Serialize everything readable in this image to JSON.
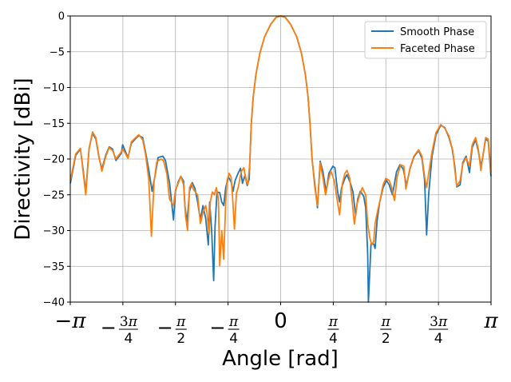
{
  "chart_data": {
    "type": "line",
    "title": "",
    "xlabel": "Angle [rad]",
    "ylabel": "Directivity [dBi]",
    "xlim": [
      -3.14159,
      3.14159
    ],
    "ylim": [
      -40,
      0
    ],
    "grid": true,
    "legend_position": "top-right",
    "x_ticks": [
      {
        "value": -3.14159,
        "label": "−π",
        "parts": [
          "−",
          "",
          "π",
          ""
        ]
      },
      {
        "value": -2.35619,
        "label": "−3π/4",
        "parts": [
          "−",
          "3",
          "π",
          "4"
        ]
      },
      {
        "value": -1.5708,
        "label": "−π/2",
        "parts": [
          "−",
          "",
          "π",
          "2"
        ]
      },
      {
        "value": -0.7854,
        "label": "−π/4",
        "parts": [
          "−",
          "",
          "π",
          "4"
        ]
      },
      {
        "value": 0,
        "label": "0",
        "parts": [
          "",
          "0",
          "",
          ""
        ]
      },
      {
        "value": 0.7854,
        "label": "π/4",
        "parts": [
          "",
          "",
          "π",
          "4"
        ]
      },
      {
        "value": 1.5708,
        "label": "π/2",
        "parts": [
          "",
          "",
          "π",
          "2"
        ]
      },
      {
        "value": 2.35619,
        "label": "3π/4",
        "parts": [
          "",
          "3",
          "π",
          "4"
        ]
      },
      {
        "value": 3.14159,
        "label": "π",
        "parts": [
          "",
          "",
          "π",
          ""
        ]
      }
    ],
    "y_ticks": [
      0,
      -5,
      -10,
      -15,
      -20,
      -25,
      -30,
      -35,
      -40
    ],
    "y_tick_labels": [
      "0",
      "−5",
      "−10",
      "−15",
      "−20",
      "−25",
      "−30",
      "−35",
      "−40"
    ],
    "series": [
      {
        "name": "Smooth Phase",
        "color": "#1f77b4",
        "points": [
          [
            -3.14,
            -23.4
          ],
          [
            -3.06,
            -19.5
          ],
          [
            -2.99,
            -18.6
          ],
          [
            -2.95,
            -21.5
          ],
          [
            -2.91,
            -24.6
          ],
          [
            -2.86,
            -18.5
          ],
          [
            -2.81,
            -16.4
          ],
          [
            -2.76,
            -17.2
          ],
          [
            -2.71,
            -19.9
          ],
          [
            -2.67,
            -21.4
          ],
          [
            -2.61,
            -19.4
          ],
          [
            -2.56,
            -18.3
          ],
          [
            -2.51,
            -18.6
          ],
          [
            -2.46,
            -20.2
          ],
          [
            -2.38,
            -19.2
          ],
          [
            -2.36,
            -18.0
          ],
          [
            -2.32,
            -18.9
          ],
          [
            -2.28,
            -19.8
          ],
          [
            -2.23,
            -17.8
          ],
          [
            -2.12,
            -16.7
          ],
          [
            -2.06,
            -17.0
          ],
          [
            -2.02,
            -18.9
          ],
          [
            -1.97,
            -21.5
          ],
          [
            -1.92,
            -24.5
          ],
          [
            -1.87,
            -22.0
          ],
          [
            -1.83,
            -19.8
          ],
          [
            -1.76,
            -19.6
          ],
          [
            -1.72,
            -20.2
          ],
          [
            -1.66,
            -23.3
          ],
          [
            -1.63,
            -25.9
          ],
          [
            -1.6,
            -28.5
          ],
          [
            -1.57,
            -24.5
          ],
          [
            -1.53,
            -23.2
          ],
          [
            -1.49,
            -22.4
          ],
          [
            -1.45,
            -23.1
          ],
          [
            -1.43,
            -26.5
          ],
          [
            -1.4,
            -29.0
          ],
          [
            -1.36,
            -24.5
          ],
          [
            -1.32,
            -23.3
          ],
          [
            -1.28,
            -24.1
          ],
          [
            -1.24,
            -26.0
          ],
          [
            -1.2,
            -28.5
          ],
          [
            -1.16,
            -26.5
          ],
          [
            -1.12,
            -28.3
          ],
          [
            -1.08,
            -32.0
          ],
          [
            -1.06,
            -26.0
          ],
          [
            -1.03,
            -30.0
          ],
          [
            -1.0,
            -37.0
          ],
          [
            -0.98,
            -29.5
          ],
          [
            -0.95,
            -24.6
          ],
          [
            -0.91,
            -24.7
          ],
          [
            -0.88,
            -26.0
          ],
          [
            -0.85,
            -26.5
          ],
          [
            -0.82,
            -24.0
          ],
          [
            -0.78,
            -22.5
          ],
          [
            -0.74,
            -23.2
          ],
          [
            -0.71,
            -24.5
          ],
          [
            -0.68,
            -23.0
          ],
          [
            -0.64,
            -22.1
          ],
          [
            -0.6,
            -21.3
          ],
          [
            -0.57,
            -23.4
          ],
          [
            -0.53,
            -22.2
          ],
          [
            -0.5,
            -23.7
          ],
          [
            -0.47,
            -22.8
          ],
          [
            -0.44,
            -15.3
          ],
          [
            -0.41,
            -11.4
          ],
          [
            -0.37,
            -8.2
          ],
          [
            -0.31,
            -5.2
          ],
          [
            -0.24,
            -2.9
          ],
          [
            -0.15,
            -1.2
          ],
          [
            -0.07,
            -0.2
          ],
          [
            0.0,
            0.0
          ],
          [
            0.07,
            -0.2
          ],
          [
            0.15,
            -1.2
          ],
          [
            0.24,
            -2.9
          ],
          [
            0.31,
            -5.2
          ],
          [
            0.37,
            -8.2
          ],
          [
            0.41,
            -11.4
          ],
          [
            0.44,
            -15.3
          ],
          [
            0.47,
            -20.1
          ],
          [
            0.51,
            -23.5
          ],
          [
            0.55,
            -26.8
          ],
          [
            0.59,
            -20.3
          ],
          [
            0.63,
            -21.7
          ],
          [
            0.68,
            -24.6
          ],
          [
            0.72,
            -22.0
          ],
          [
            0.78,
            -21.0
          ],
          [
            0.81,
            -21.2
          ],
          [
            0.85,
            -24.5
          ],
          [
            0.88,
            -26.0
          ],
          [
            0.91,
            -24.0
          ],
          [
            0.96,
            -22.7
          ],
          [
            0.99,
            -22.2
          ],
          [
            1.04,
            -23.3
          ],
          [
            1.08,
            -24.6
          ],
          [
            1.12,
            -27.9
          ],
          [
            1.15,
            -25.6
          ],
          [
            1.19,
            -24.5
          ],
          [
            1.24,
            -25.2
          ],
          [
            1.27,
            -26.8
          ],
          [
            1.3,
            -33.2
          ],
          [
            1.31,
            -40.0
          ],
          [
            1.35,
            -31.8
          ],
          [
            1.39,
            -31.9
          ],
          [
            1.41,
            -32.5
          ],
          [
            1.44,
            -28.6
          ],
          [
            1.48,
            -26.0
          ],
          [
            1.53,
            -24.0
          ],
          [
            1.58,
            -23.0
          ],
          [
            1.62,
            -23.6
          ],
          [
            1.67,
            -25.0
          ],
          [
            1.73,
            -21.8
          ],
          [
            1.78,
            -20.8
          ],
          [
            1.83,
            -21.4
          ],
          [
            1.88,
            -23.7
          ],
          [
            1.93,
            -21.4
          ],
          [
            1.99,
            -19.7
          ],
          [
            2.06,
            -18.8
          ],
          [
            2.11,
            -19.9
          ],
          [
            2.15,
            -23.0
          ],
          [
            2.18,
            -30.6
          ],
          [
            2.21,
            -24.9
          ],
          [
            2.26,
            -19.6
          ],
          [
            2.32,
            -16.6
          ],
          [
            2.39,
            -15.3
          ],
          [
            2.45,
            -15.6
          ],
          [
            2.51,
            -16.9
          ],
          [
            2.56,
            -18.5
          ],
          [
            2.6,
            -21.0
          ],
          [
            2.63,
            -23.9
          ],
          [
            2.68,
            -23.6
          ],
          [
            2.72,
            -20.5
          ],
          [
            2.77,
            -19.6
          ],
          [
            2.82,
            -21.9
          ],
          [
            2.86,
            -18.4
          ],
          [
            2.91,
            -17.3
          ],
          [
            2.95,
            -18.8
          ],
          [
            2.99,
            -21.0
          ],
          [
            3.02,
            -19.6
          ],
          [
            3.06,
            -17.2
          ],
          [
            3.1,
            -17.5
          ],
          [
            3.14,
            -22.4
          ]
        ]
      },
      {
        "name": "Faceted Phase",
        "color": "#ff7f0e",
        "points": [
          [
            -3.14,
            -23.0
          ],
          [
            -3.06,
            -19.3
          ],
          [
            -2.99,
            -18.5
          ],
          [
            -2.95,
            -21.8
          ],
          [
            -2.91,
            -25.0
          ],
          [
            -2.86,
            -18.6
          ],
          [
            -2.81,
            -16.2
          ],
          [
            -2.76,
            -17.0
          ],
          [
            -2.71,
            -19.8
          ],
          [
            -2.67,
            -21.7
          ],
          [
            -2.61,
            -19.6
          ],
          [
            -2.56,
            -18.4
          ],
          [
            -2.51,
            -18.8
          ],
          [
            -2.46,
            -20.0
          ],
          [
            -2.38,
            -19.0
          ],
          [
            -2.36,
            -18.6
          ],
          [
            -2.32,
            -19.2
          ],
          [
            -2.28,
            -19.9
          ],
          [
            -2.23,
            -17.6
          ],
          [
            -2.12,
            -16.6
          ],
          [
            -2.06,
            -17.3
          ],
          [
            -2.02,
            -19.2
          ],
          [
            -1.97,
            -22.8
          ],
          [
            -1.93,
            -30.8
          ],
          [
            -1.89,
            -23.2
          ],
          [
            -1.85,
            -20.4
          ],
          [
            -1.79,
            -20.0
          ],
          [
            -1.75,
            -20.2
          ],
          [
            -1.7,
            -22.0
          ],
          [
            -1.66,
            -25.6
          ],
          [
            -1.6,
            -26.5
          ],
          [
            -1.57,
            -24.3
          ],
          [
            -1.53,
            -23.4
          ],
          [
            -1.49,
            -22.4
          ],
          [
            -1.45,
            -23.6
          ],
          [
            -1.42,
            -28.0
          ],
          [
            -1.39,
            -30.0
          ],
          [
            -1.36,
            -24.0
          ],
          [
            -1.33,
            -23.4
          ],
          [
            -1.3,
            -24.3
          ],
          [
            -1.24,
            -25.0
          ],
          [
            -1.2,
            -29.0
          ],
          [
            -1.16,
            -27.5
          ],
          [
            -1.12,
            -26.5
          ],
          [
            -1.1,
            -27.5
          ],
          [
            -1.07,
            -30.5
          ],
          [
            -1.05,
            -26.0
          ],
          [
            -1.02,
            -24.6
          ],
          [
            -0.99,
            -25.0
          ],
          [
            -0.96,
            -24.0
          ],
          [
            -0.93,
            -25.5
          ],
          [
            -0.91,
            -34.9
          ],
          [
            -0.88,
            -30.0
          ],
          [
            -0.85,
            -34.0
          ],
          [
            -0.82,
            -26.0
          ],
          [
            -0.8,
            -23.0
          ],
          [
            -0.77,
            -22.0
          ],
          [
            -0.74,
            -22.5
          ],
          [
            -0.72,
            -25.0
          ],
          [
            -0.69,
            -29.8
          ],
          [
            -0.66,
            -24.8
          ],
          [
            -0.63,
            -23.8
          ],
          [
            -0.59,
            -21.8
          ],
          [
            -0.55,
            -21.2
          ],
          [
            -0.52,
            -23.0
          ],
          [
            -0.49,
            -23.5
          ],
          [
            -0.46,
            -20.5
          ],
          [
            -0.44,
            -15.3
          ],
          [
            -0.41,
            -11.4
          ],
          [
            -0.37,
            -8.2
          ],
          [
            -0.31,
            -5.2
          ],
          [
            -0.24,
            -2.9
          ],
          [
            -0.15,
            -1.2
          ],
          [
            -0.07,
            -0.2
          ],
          [
            0.0,
            0.0
          ],
          [
            0.07,
            -0.2
          ],
          [
            0.15,
            -1.2
          ],
          [
            0.24,
            -2.9
          ],
          [
            0.31,
            -5.2
          ],
          [
            0.37,
            -8.2
          ],
          [
            0.41,
            -11.4
          ],
          [
            0.44,
            -15.3
          ],
          [
            0.47,
            -20.0
          ],
          [
            0.51,
            -24.0
          ],
          [
            0.55,
            -26.5
          ],
          [
            0.59,
            -20.5
          ],
          [
            0.63,
            -22.5
          ],
          [
            0.67,
            -25.0
          ],
          [
            0.71,
            -23.0
          ],
          [
            0.75,
            -21.7
          ],
          [
            0.8,
            -23.0
          ],
          [
            0.84,
            -25.5
          ],
          [
            0.88,
            -27.8
          ],
          [
            0.92,
            -23.5
          ],
          [
            0.96,
            -22.0
          ],
          [
            0.99,
            -21.6
          ],
          [
            1.03,
            -22.6
          ],
          [
            1.07,
            -26.0
          ],
          [
            1.1,
            -29.1
          ],
          [
            1.14,
            -26.3
          ],
          [
            1.18,
            -25.0
          ],
          [
            1.22,
            -24.0
          ],
          [
            1.27,
            -25.0
          ],
          [
            1.3,
            -29.0
          ],
          [
            1.33,
            -31.0
          ],
          [
            1.36,
            -32.0
          ],
          [
            1.39,
            -31.5
          ],
          [
            1.41,
            -29.0
          ],
          [
            1.45,
            -27.2
          ],
          [
            1.49,
            -25.5
          ],
          [
            1.53,
            -23.6
          ],
          [
            1.57,
            -22.7
          ],
          [
            1.62,
            -23.0
          ],
          [
            1.66,
            -24.0
          ],
          [
            1.7,
            -25.8
          ],
          [
            1.74,
            -22.5
          ],
          [
            1.79,
            -20.8
          ],
          [
            1.84,
            -21.0
          ],
          [
            1.87,
            -24.2
          ],
          [
            1.93,
            -21.3
          ],
          [
            1.99,
            -19.6
          ],
          [
            2.06,
            -18.7
          ],
          [
            2.11,
            -19.6
          ],
          [
            2.15,
            -22.5
          ],
          [
            2.18,
            -24.0
          ],
          [
            2.21,
            -22.0
          ],
          [
            2.26,
            -19.0
          ],
          [
            2.32,
            -16.3
          ],
          [
            2.39,
            -15.2
          ],
          [
            2.45,
            -15.7
          ],
          [
            2.51,
            -16.7
          ],
          [
            2.57,
            -18.8
          ],
          [
            2.6,
            -21.5
          ],
          [
            2.63,
            -23.8
          ],
          [
            2.68,
            -23.0
          ],
          [
            2.72,
            -20.7
          ],
          [
            2.77,
            -19.8
          ],
          [
            2.82,
            -21.0
          ],
          [
            2.86,
            -18.0
          ],
          [
            2.91,
            -17.0
          ],
          [
            2.95,
            -18.5
          ],
          [
            2.99,
            -21.6
          ],
          [
            3.02,
            -19.6
          ],
          [
            3.06,
            -17.0
          ],
          [
            3.1,
            -17.2
          ],
          [
            3.14,
            -21.9
          ]
        ]
      }
    ]
  }
}
